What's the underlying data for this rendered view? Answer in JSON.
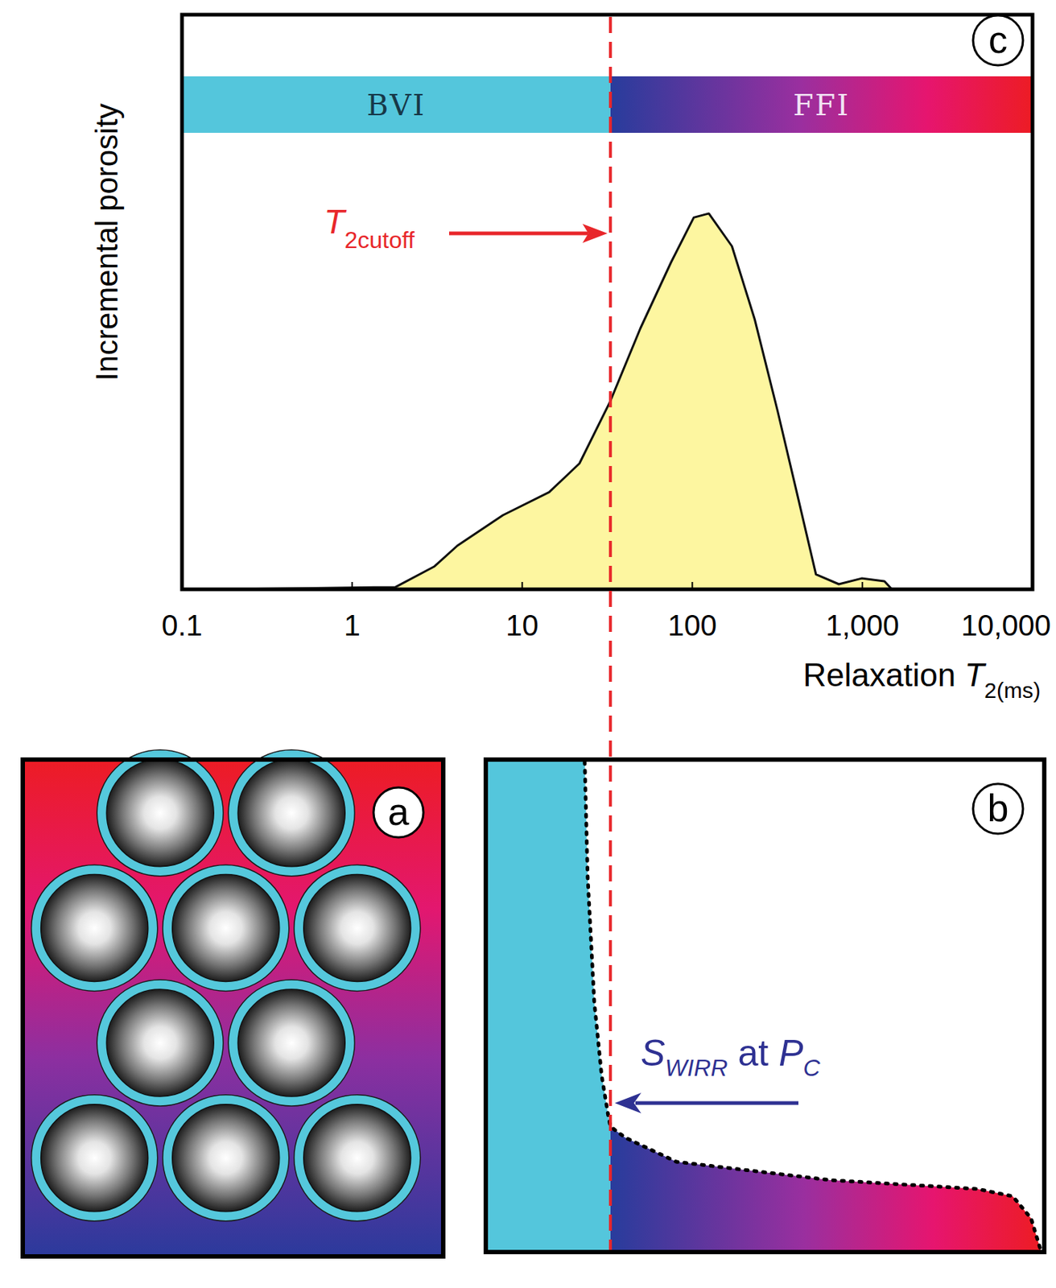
{
  "chart_data": {
    "type": "area",
    "panel_label": "c",
    "y_label": "Incremental porosity",
    "x_label": "Relaxation ",
    "x_label_symbol": "T",
    "x_label_subscript": "2(ms)",
    "x": [
      0.19,
      1.8,
      3.05,
      4.16,
      7.7,
      14.4,
      21.7,
      32.8,
      49.5,
      75,
      102,
      125,
      171,
      233,
      317,
      411,
      533,
      727,
      989,
      1347,
      1493,
      7600
    ],
    "values": [
      0,
      0.4,
      4,
      7.6,
      12.9,
      16.9,
      21.9,
      32.6,
      45.4,
      56.9,
      64.7,
      65.4,
      59.7,
      46.9,
      31.1,
      16.9,
      2.6,
      0.9,
      1.9,
      1.4,
      0,
      0
    ],
    "color": "#fdf6a0",
    "xlim": [
      0.1,
      10000
    ],
    "ylim": [
      0,
      100
    ],
    "xticks": [
      0.1,
      1,
      10,
      100,
      {
        "value": 1000,
        "label": "1,000"
      },
      {
        "value": 10000,
        "label": "10,000"
      }
    ],
    "log": "x",
    "tick_labels": "x",
    "cutoff": {
      "value": 33,
      "symbol": "T",
      "subscript": "2cutoff"
    },
    "bands": [
      {
        "label": "BVI",
        "from": 0.1,
        "to": 33
      },
      {
        "label": "FFI",
        "from": 33,
        "to": 10000
      }
    ]
  },
  "diagram": {
    "panels": [
      {
        "label": "a"
      },
      {
        "label": "b",
        "annotation": {
          "symbol": "S",
          "subscript": "WIRR",
          "middle": " at ",
          "symbol2": "P",
          "subscript2": "C"
        }
      }
    ]
  }
}
